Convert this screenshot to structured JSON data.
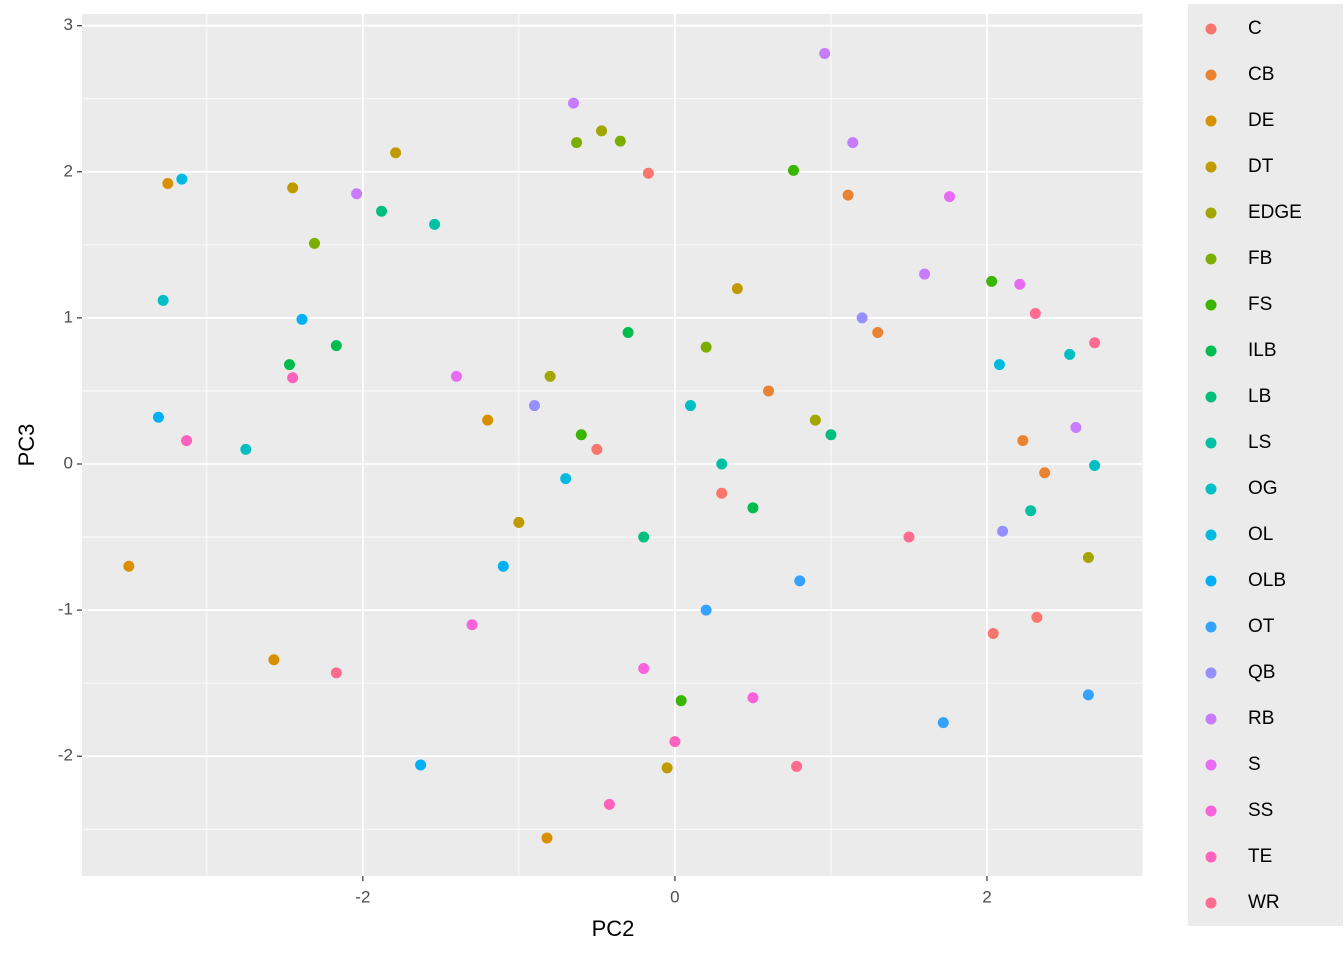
{
  "chart_data": {
    "type": "scatter",
    "x_label": "PC2",
    "y_label": "PC3",
    "xlim": [
      -3.8,
      3.0
    ],
    "ylim": [
      -2.82,
      3.08
    ],
    "xticks": [
      -2,
      0,
      2
    ],
    "yticks": [
      -2,
      -1,
      0,
      1,
      2,
      3
    ],
    "grid": true,
    "legend": "right",
    "series": [
      {
        "name": "C",
        "color": "#F8766D",
        "x": [
          -0.17,
          2.32,
          2.04,
          0.3,
          -0.5
        ],
        "values": [
          1.99,
          -1.05,
          -1.16,
          -0.2,
          0.1
        ]
      },
      {
        "name": "CB",
        "color": "#EA8331",
        "x": [
          2.37,
          2.23,
          1.11,
          0.6,
          1.3
        ],
        "values": [
          -0.06,
          0.16,
          1.84,
          0.5,
          0.9
        ]
      },
      {
        "name": "DE",
        "color": "#D89000",
        "x": [
          -3.25,
          -3.5,
          -0.82,
          -2.57,
          -1.2
        ],
        "values": [
          1.92,
          -0.7,
          -2.56,
          -1.34,
          0.3
        ]
      },
      {
        "name": "DT",
        "color": "#C09B00",
        "x": [
          -1.79,
          -2.45,
          -0.05,
          -1.0,
          0.4
        ],
        "values": [
          2.13,
          1.89,
          -2.08,
          -0.4,
          1.2
        ]
      },
      {
        "name": "EDGE",
        "color": "#A3A500",
        "x": [
          2.65,
          -0.47,
          0.9,
          -0.8
        ],
        "values": [
          -0.64,
          2.28,
          0.3,
          0.6
        ]
      },
      {
        "name": "FB",
        "color": "#7CAE00",
        "x": [
          -0.63,
          -2.31,
          -0.35,
          0.2
        ],
        "values": [
          2.2,
          1.51,
          2.21,
          0.8
        ]
      },
      {
        "name": "FS",
        "color": "#39B600",
        "x": [
          2.03,
          0.76,
          0.04,
          -0.6
        ],
        "values": [
          1.25,
          2.01,
          -1.62,
          0.2
        ]
      },
      {
        "name": "ILB",
        "color": "#00BB4E",
        "x": [
          -2.17,
          -2.47,
          0.5,
          -0.3
        ],
        "values": [
          0.81,
          0.68,
          -0.3,
          0.9
        ]
      },
      {
        "name": "LB",
        "color": "#00BF7D",
        "x": [
          -1.88,
          1.0,
          -0.2
        ],
        "values": [
          1.73,
          0.2,
          -0.5
        ]
      },
      {
        "name": "LS",
        "color": "#00C1A3",
        "x": [
          2.28,
          -1.54,
          0.3
        ],
        "values": [
          -0.32,
          1.64,
          0.0
        ]
      },
      {
        "name": "OG",
        "color": "#00BFC4",
        "x": [
          -3.28,
          -2.75,
          2.69,
          2.53,
          0.1
        ],
        "values": [
          1.12,
          0.1,
          -0.01,
          0.75,
          0.4
        ]
      },
      {
        "name": "OL",
        "color": "#00BAE0",
        "x": [
          -3.16,
          2.08,
          -0.7
        ],
        "values": [
          1.95,
          0.68,
          -0.1
        ]
      },
      {
        "name": "OLB",
        "color": "#00B0F6",
        "x": [
          -3.31,
          -1.63,
          -2.39,
          -1.1
        ],
        "values": [
          0.32,
          -2.06,
          0.99,
          -0.7
        ]
      },
      {
        "name": "OT",
        "color": "#35A2FF",
        "x": [
          2.65,
          1.72,
          0.2,
          0.8
        ],
        "values": [
          -1.58,
          -1.77,
          -1.0,
          -0.8
        ]
      },
      {
        "name": "QB",
        "color": "#9590FF",
        "x": [
          2.1,
          -0.9,
          1.2
        ],
        "values": [
          -0.46,
          0.4,
          1.0
        ]
      },
      {
        "name": "RB",
        "color": "#C77CFF",
        "x": [
          0.96,
          -0.65,
          1.14,
          2.57,
          -2.04,
          1.6
        ],
        "values": [
          2.81,
          2.47,
          2.2,
          0.25,
          1.85,
          1.3
        ]
      },
      {
        "name": "S",
        "color": "#E76BF3",
        "x": [
          2.21,
          1.76,
          -1.4
        ],
        "values": [
          1.23,
          1.83,
          0.6
        ]
      },
      {
        "name": "SS",
        "color": "#FA62DB",
        "x": [
          -0.2,
          0.5,
          -1.3
        ],
        "values": [
          -1.4,
          -1.6,
          -1.1
        ]
      },
      {
        "name": "TE",
        "color": "#FF62BC",
        "x": [
          -3.13,
          -0.42,
          -2.45,
          0.0
        ],
        "values": [
          0.16,
          -2.33,
          0.59,
          -1.9
        ]
      },
      {
        "name": "WR",
        "color": "#FF6C90",
        "x": [
          2.69,
          2.31,
          0.78,
          -2.17,
          1.5
        ],
        "values": [
          0.83,
          1.03,
          -2.07,
          -1.43,
          -0.5
        ]
      }
    ]
  }
}
